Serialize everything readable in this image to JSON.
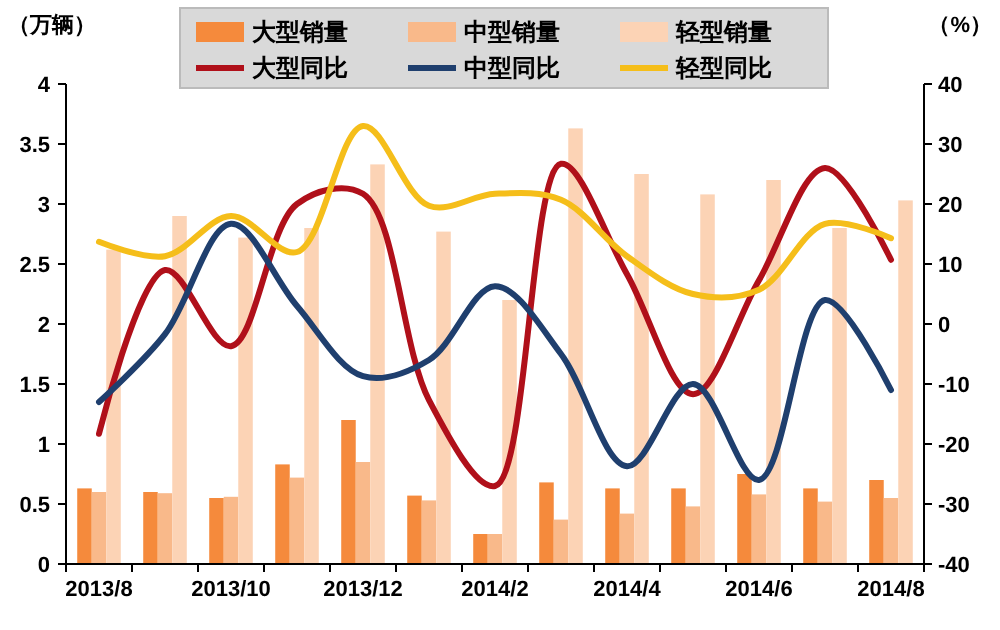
{
  "chart_data": {
    "type": "bar",
    "ylabel": "（万辆）",
    "y2label": "（%）",
    "categories": [
      "2013/8",
      null,
      "2013/10",
      null,
      "2013/12",
      null,
      "2014/2",
      null,
      "2014/4",
      null,
      "2014/6",
      null,
      "2014/8"
    ],
    "series": [
      {
        "name": "大型销量",
        "color": "#f58a3c",
        "values": [
          0.63,
          0.6,
          0.55,
          0.83,
          1.2,
          0.57,
          0.25,
          0.68,
          0.63,
          0.63,
          0.75,
          0.63,
          0.7
        ]
      },
      {
        "name": "中型销量",
        "color": "#f9b98a",
        "values": [
          0.6,
          0.59,
          0.56,
          0.72,
          0.85,
          0.53,
          0.25,
          0.37,
          0.42,
          0.48,
          0.58,
          0.52,
          0.55
        ]
      },
      {
        "name": "轻型销量",
        "color": "#fcd3b5",
        "values": [
          2.62,
          2.9,
          2.72,
          2.8,
          3.33,
          2.77,
          2.2,
          3.63,
          3.25,
          3.08,
          3.2,
          2.8,
          3.03
        ]
      },
      {
        "name": "大型同比",
        "type": "line",
        "axis": "y2",
        "color": "#b0101a",
        "values": [
          -18.3,
          9,
          -3.7,
          20,
          21.7,
          -12.7,
          -27,
          26.7,
          8.3,
          -11.7,
          7.3,
          26,
          10.7
        ]
      },
      {
        "name": "中型同比",
        "type": "line",
        "axis": "y2",
        "color": "#1f3f6e",
        "values": [
          -13,
          -1.7,
          16.7,
          3,
          -8.7,
          -6,
          6.3,
          -5,
          -23.7,
          -10,
          -26,
          4,
          -11
        ]
      },
      {
        "name": "轻型同比",
        "type": "line",
        "axis": "y2",
        "color": "#f5be1a",
        "values": [
          13.7,
          11.3,
          18,
          12,
          33,
          19.7,
          21.7,
          20.7,
          11.3,
          5,
          5.7,
          16.7,
          14.3
        ]
      }
    ],
    "ylim": [
      0,
      4
    ],
    "yticks": [
      0,
      0.5,
      1,
      1.5,
      2,
      2.5,
      3,
      3.5,
      4
    ],
    "y2lim": [
      -40,
      40
    ],
    "y2ticks": [
      -40,
      -30,
      -20,
      -10,
      0,
      10,
      20,
      30,
      40
    ],
    "legend": "top",
    "grid": false,
    "marker": "none",
    "line_style": "solid"
  }
}
